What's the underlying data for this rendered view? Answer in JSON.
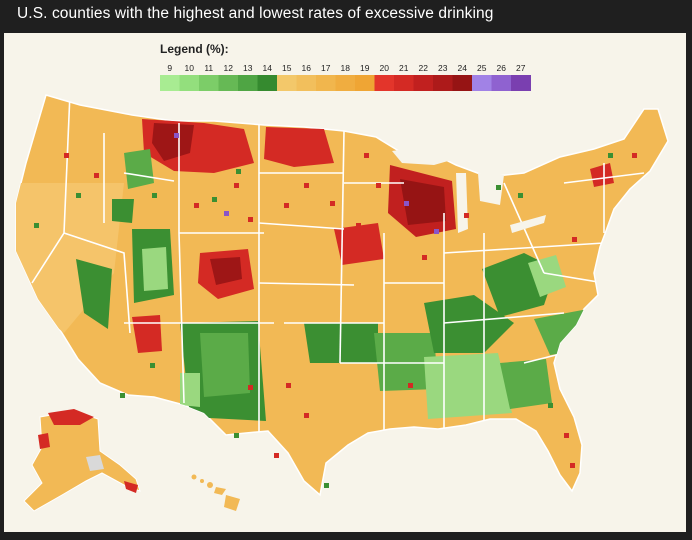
{
  "title": "U.S. counties with the highest and lowest rates of excessive drinking",
  "legend": {
    "title": "Legend (%):",
    "ticks": [
      "9",
      "10",
      "11",
      "12",
      "13",
      "14",
      "15",
      "16",
      "17",
      "18",
      "19",
      "20",
      "21",
      "22",
      "23",
      "24",
      "25",
      "26",
      "27"
    ],
    "colors": [
      "#a8ec92",
      "#93df7d",
      "#7ccd68",
      "#66b955",
      "#4fa544",
      "#358a2f",
      "#f3c86a",
      "#f2bf5c",
      "#f1b64d",
      "#f0ad40",
      "#efa534",
      "#e3352b",
      "#d42a24",
      "#c1201f",
      "#ad1a1a",
      "#961414",
      "#a182e6",
      "#8f62d0",
      "#7a3fb0"
    ]
  },
  "map_colors": {
    "land_base": "#f2b955",
    "border": "#ffffff",
    "low_dark": "#3b8f32",
    "low_mid": "#5bab48",
    "low_light": "#9ad87f",
    "high_red": "#d42a24",
    "high_dark": "#9e1616",
    "high_purple": "#8a55c8",
    "no_data": "#d9d9d9"
  }
}
